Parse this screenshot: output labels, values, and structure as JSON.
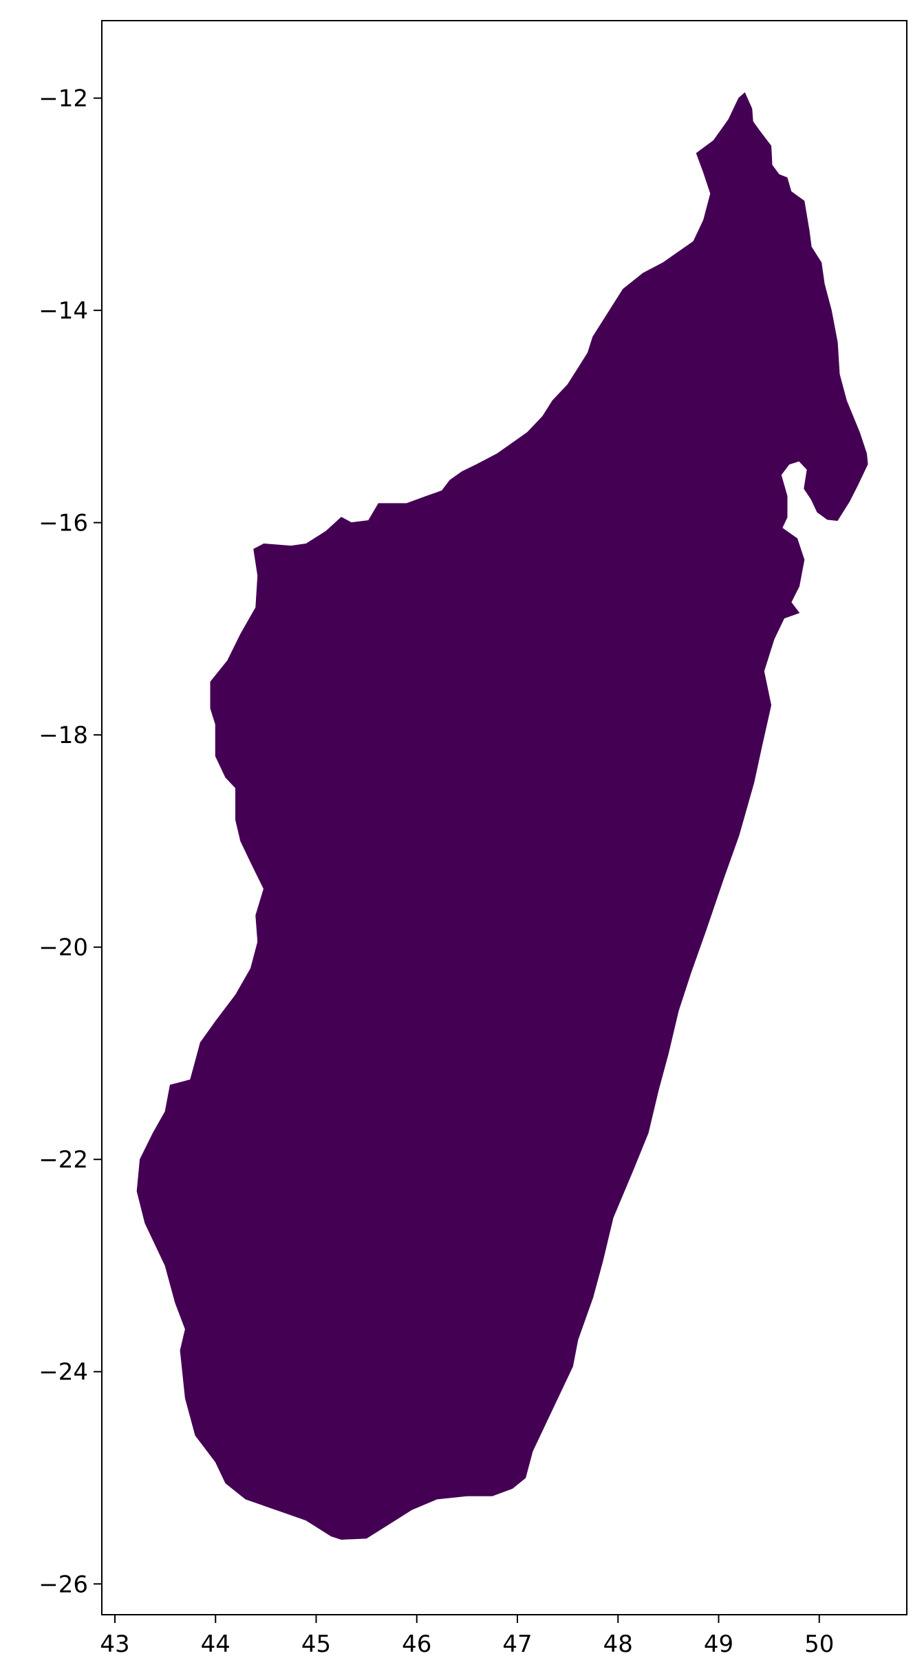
{
  "map": {
    "land_name": "Madagascar",
    "fill_color": "#440154",
    "background_color": "#ffffff",
    "frame_color": "#000000",
    "x_axis": {
      "range": [
        42.87,
        50.87
      ],
      "ticks": [
        43,
        44,
        45,
        46,
        47,
        48,
        49,
        50
      ],
      "tick_labels": [
        "43",
        "44",
        "45",
        "46",
        "47",
        "48",
        "49",
        "50"
      ]
    },
    "y_axis": {
      "range": [
        -26.29,
        -11.27
      ],
      "ticks": [
        -12,
        -14,
        -16,
        -18,
        -20,
        -22,
        -24,
        -26
      ],
      "tick_labels": [
        "−12",
        "−14",
        "−16",
        "−18",
        "−20",
        "−22",
        "−24",
        "−26"
      ]
    },
    "coastline": [
      [
        49.26,
        -11.95
      ],
      [
        49.33,
        -12.1
      ],
      [
        49.34,
        -12.22
      ],
      [
        49.4,
        -12.3
      ],
      [
        49.52,
        -12.45
      ],
      [
        49.53,
        -12.63
      ],
      [
        49.6,
        -12.72
      ],
      [
        49.68,
        -12.75
      ],
      [
        49.72,
        -12.88
      ],
      [
        49.85,
        -12.97
      ],
      [
        49.9,
        -13.25
      ],
      [
        49.92,
        -13.4
      ],
      [
        50.02,
        -13.55
      ],
      [
        50.05,
        -13.75
      ],
      [
        50.12,
        -14.0
      ],
      [
        50.18,
        -14.3
      ],
      [
        50.2,
        -14.6
      ],
      [
        50.27,
        -14.85
      ],
      [
        50.4,
        -15.15
      ],
      [
        50.47,
        -15.35
      ],
      [
        50.48,
        -15.45
      ],
      [
        50.38,
        -15.65
      ],
      [
        50.3,
        -15.8
      ],
      [
        50.18,
        -15.98
      ],
      [
        50.08,
        -15.97
      ],
      [
        49.98,
        -15.9
      ],
      [
        49.92,
        -15.78
      ],
      [
        49.85,
        -15.68
      ],
      [
        49.88,
        -15.5
      ],
      [
        49.8,
        -15.42
      ],
      [
        49.7,
        -15.45
      ],
      [
        49.62,
        -15.55
      ],
      [
        49.68,
        -15.75
      ],
      [
        49.68,
        -15.95
      ],
      [
        49.63,
        -16.05
      ],
      [
        49.78,
        -16.15
      ],
      [
        49.85,
        -16.35
      ],
      [
        49.8,
        -16.6
      ],
      [
        49.72,
        -16.75
      ],
      [
        49.8,
        -16.85
      ],
      [
        49.65,
        -16.9
      ],
      [
        49.55,
        -17.1
      ],
      [
        49.45,
        -17.4
      ],
      [
        49.52,
        -17.72
      ],
      [
        49.43,
        -18.1
      ],
      [
        49.35,
        -18.45
      ],
      [
        49.2,
        -18.95
      ],
      [
        49.05,
        -19.35
      ],
      [
        48.87,
        -19.85
      ],
      [
        48.72,
        -20.25
      ],
      [
        48.6,
        -20.6
      ],
      [
        48.5,
        -21.0
      ],
      [
        48.4,
        -21.35
      ],
      [
        48.3,
        -21.75
      ],
      [
        48.15,
        -22.1
      ],
      [
        47.95,
        -22.55
      ],
      [
        47.85,
        -22.95
      ],
      [
        47.75,
        -23.3
      ],
      [
        47.6,
        -23.7
      ],
      [
        47.55,
        -23.95
      ],
      [
        47.35,
        -24.35
      ],
      [
        47.15,
        -24.75
      ],
      [
        47.08,
        -25.0
      ],
      [
        46.95,
        -25.1
      ],
      [
        46.75,
        -25.17
      ],
      [
        46.5,
        -25.17
      ],
      [
        46.2,
        -25.2
      ],
      [
        45.95,
        -25.3
      ],
      [
        45.7,
        -25.45
      ],
      [
        45.5,
        -25.57
      ],
      [
        45.25,
        -25.58
      ],
      [
        45.15,
        -25.55
      ],
      [
        44.9,
        -25.4
      ],
      [
        44.6,
        -25.3
      ],
      [
        44.3,
        -25.2
      ],
      [
        44.1,
        -25.05
      ],
      [
        44.0,
        -24.85
      ],
      [
        43.8,
        -24.6
      ],
      [
        43.7,
        -24.25
      ],
      [
        43.65,
        -23.8
      ],
      [
        43.7,
        -23.6
      ],
      [
        43.6,
        -23.35
      ],
      [
        43.5,
        -23.0
      ],
      [
        43.4,
        -22.8
      ],
      [
        43.3,
        -22.6
      ],
      [
        43.22,
        -22.3
      ],
      [
        43.25,
        -22.0
      ],
      [
        43.38,
        -21.75
      ],
      [
        43.5,
        -21.55
      ],
      [
        43.55,
        -21.3
      ],
      [
        43.75,
        -21.25
      ],
      [
        43.85,
        -20.9
      ],
      [
        44.0,
        -20.7
      ],
      [
        44.2,
        -20.45
      ],
      [
        44.35,
        -20.2
      ],
      [
        44.42,
        -19.95
      ],
      [
        44.4,
        -19.7
      ],
      [
        44.48,
        -19.45
      ],
      [
        44.35,
        -19.2
      ],
      [
        44.25,
        -19.0
      ],
      [
        44.2,
        -18.8
      ],
      [
        44.2,
        -18.5
      ],
      [
        44.1,
        -18.4
      ],
      [
        44.0,
        -18.2
      ],
      [
        44.0,
        -17.9
      ],
      [
        43.95,
        -17.75
      ],
      [
        43.95,
        -17.5
      ],
      [
        44.12,
        -17.3
      ],
      [
        44.25,
        -17.05
      ],
      [
        44.4,
        -16.8
      ],
      [
        44.42,
        -16.5
      ],
      [
        44.38,
        -16.25
      ],
      [
        44.48,
        -16.2
      ],
      [
        44.75,
        -16.22
      ],
      [
        44.9,
        -16.2
      ],
      [
        45.1,
        -16.08
      ],
      [
        45.25,
        -15.95
      ],
      [
        45.35,
        -16.0
      ],
      [
        45.52,
        -15.98
      ],
      [
        45.62,
        -15.82
      ],
      [
        45.9,
        -15.82
      ],
      [
        46.1,
        -15.75
      ],
      [
        46.25,
        -15.7
      ],
      [
        46.33,
        -15.6
      ],
      [
        46.45,
        -15.52
      ],
      [
        46.6,
        -15.45
      ],
      [
        46.8,
        -15.35
      ],
      [
        46.95,
        -15.25
      ],
      [
        47.1,
        -15.15
      ],
      [
        47.25,
        -15.0
      ],
      [
        47.35,
        -14.85
      ],
      [
        47.5,
        -14.7
      ],
      [
        47.6,
        -14.55
      ],
      [
        47.7,
        -14.4
      ],
      [
        47.75,
        -14.25
      ],
      [
        47.85,
        -14.1
      ],
      [
        47.95,
        -13.95
      ],
      [
        48.05,
        -13.8
      ],
      [
        48.25,
        -13.65
      ],
      [
        48.45,
        -13.55
      ],
      [
        48.6,
        -13.45
      ],
      [
        48.75,
        -13.35
      ],
      [
        48.85,
        -13.15
      ],
      [
        48.92,
        -12.9
      ],
      [
        48.85,
        -12.7
      ],
      [
        48.78,
        -12.52
      ],
      [
        48.95,
        -12.4
      ],
      [
        49.1,
        -12.2
      ],
      [
        49.2,
        -12.0
      ]
    ]
  }
}
